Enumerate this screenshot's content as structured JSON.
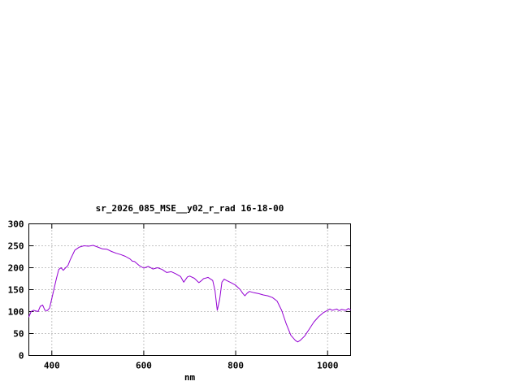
{
  "page": {
    "background": "#ffffff"
  },
  "chart_data": {
    "type": "line",
    "title": "sr_2026_085_MSE__y02_r_rad 16-18-00",
    "xlabel": "nm",
    "ylabel": "",
    "xlim": [
      350,
      1050
    ],
    "ylim": [
      0,
      300
    ],
    "xticks": [
      400,
      600,
      800,
      1000
    ],
    "yticks": [
      0,
      50,
      100,
      150,
      200,
      250,
      300
    ],
    "grid": true,
    "legend": "none",
    "line_color": "#9400d3",
    "x": [
      350,
      355,
      360,
      370,
      375,
      380,
      385,
      390,
      395,
      400,
      410,
      415,
      420,
      425,
      430,
      435,
      440,
      450,
      460,
      470,
      480,
      490,
      500,
      510,
      520,
      530,
      540,
      550,
      560,
      570,
      575,
      580,
      590,
      600,
      610,
      620,
      630,
      640,
      650,
      660,
      670,
      680,
      687,
      695,
      700,
      710,
      720,
      725,
      730,
      740,
      750,
      755,
      760,
      765,
      770,
      775,
      780,
      790,
      800,
      810,
      815,
      820,
      825,
      830,
      840,
      850,
      860,
      870,
      880,
      890,
      900,
      910,
      920,
      930,
      935,
      940,
      950,
      960,
      970,
      980,
      990,
      1000,
      1005,
      1010,
      1020,
      1025,
      1030,
      1040,
      1045,
      1050
    ],
    "y": [
      88,
      100,
      103,
      100,
      112,
      115,
      103,
      102,
      108,
      130,
      175,
      196,
      200,
      194,
      200,
      205,
      218,
      240,
      247,
      250,
      249,
      251,
      247,
      243,
      242,
      237,
      233,
      230,
      226,
      220,
      215,
      214,
      205,
      199,
      203,
      197,
      200,
      196,
      189,
      191,
      186,
      180,
      167,
      179,
      181,
      176,
      166,
      170,
      175,
      178,
      171,
      148,
      103,
      127,
      167,
      174,
      171,
      166,
      160,
      150,
      142,
      136,
      142,
      146,
      143,
      141,
      138,
      136,
      132,
      124,
      103,
      72,
      46,
      34,
      31,
      34,
      44,
      60,
      76,
      88,
      97,
      103,
      106,
      103,
      106,
      102,
      105,
      103,
      107,
      104
    ]
  }
}
